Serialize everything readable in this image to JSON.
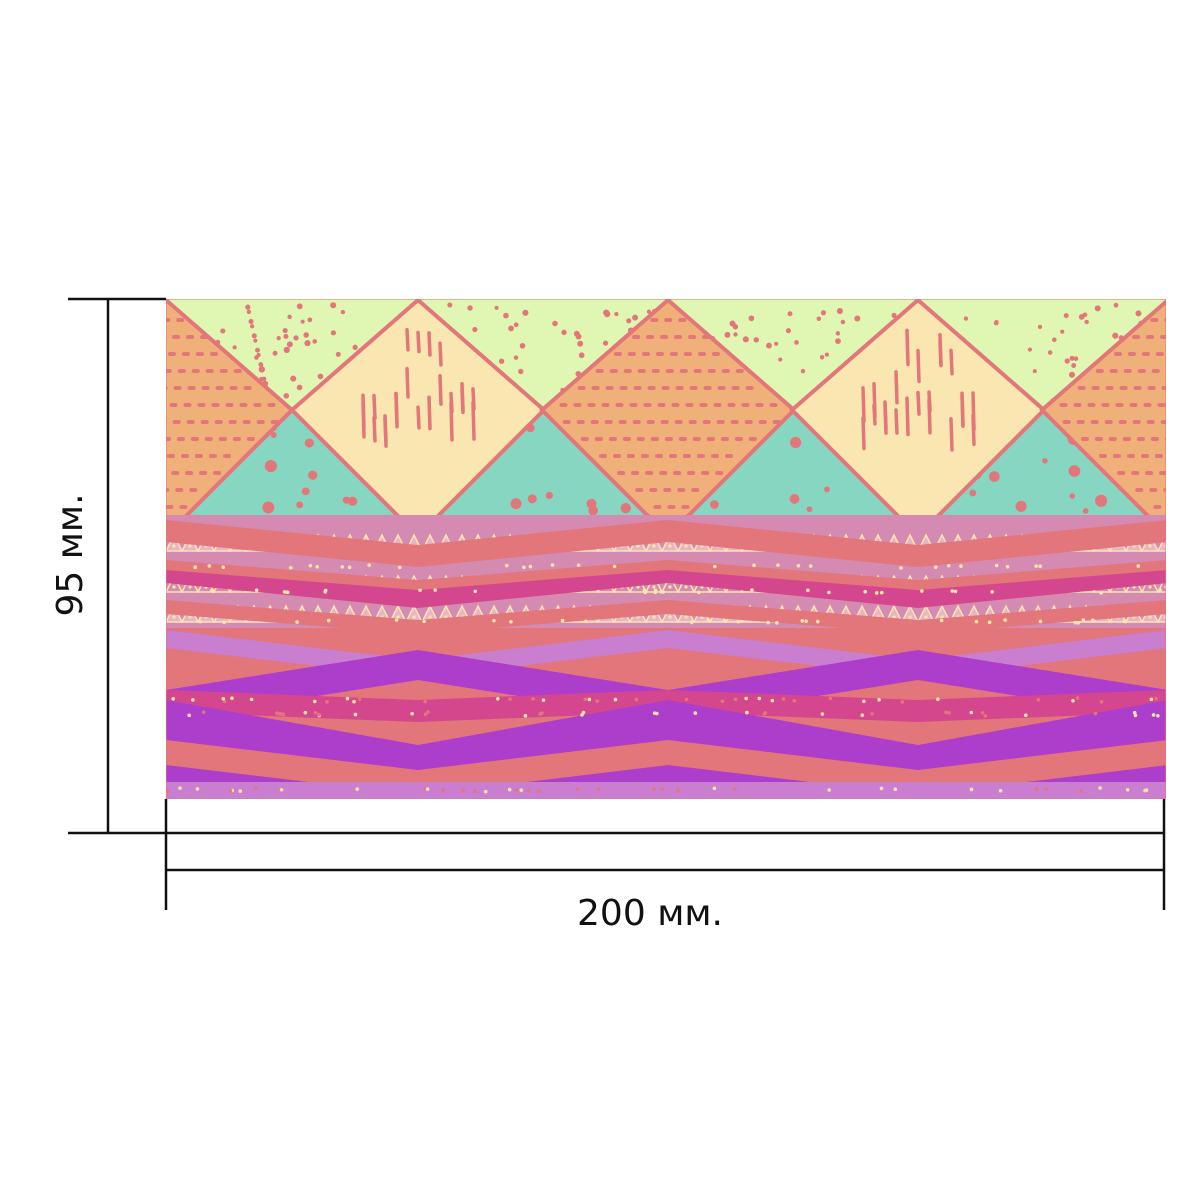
{
  "dimensions": {
    "height_label": "95 мм.",
    "width_label": "200 мм."
  },
  "pattern": {
    "colors": {
      "lime": "#dff7b3",
      "cream": "#f9e6b0",
      "orange": "#efb07a",
      "mint": "#86d6c2",
      "coral": "#e3767a",
      "magenta": "#d4478e",
      "purple": "#ad3ecb",
      "mauve": "#d58ab2",
      "lavender": "#c97ed0",
      "dot_light": "#f6e7a9"
    }
  }
}
